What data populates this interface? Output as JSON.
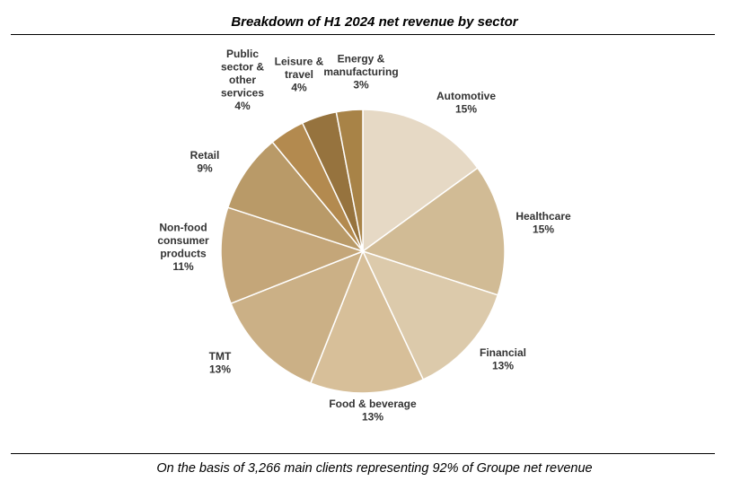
{
  "title": "Breakdown of H1 2024 net revenue by sector",
  "footnote": "On the basis of 3,266 main clients representing 92% of Groupe net revenue",
  "chart_data": {
    "type": "pie",
    "title": "Breakdown of H1 2024 net revenue by sector",
    "slices": [
      {
        "label": "Automotive",
        "label_lines": [
          "Automotive"
        ],
        "value": 15,
        "value_text": "15%",
        "color": "#e6d9c5"
      },
      {
        "label": "Healthcare",
        "label_lines": [
          "Healthcare"
        ],
        "value": 15,
        "value_text": "15%",
        "color": "#d1bb95"
      },
      {
        "label": "Financial",
        "label_lines": [
          "Financial"
        ],
        "value": 13,
        "value_text": "13%",
        "color": "#dccaab"
      },
      {
        "label": "Food & beverage",
        "label_lines": [
          "Food & beverage"
        ],
        "value": 13,
        "value_text": "13%",
        "color": "#d7bf99"
      },
      {
        "label": "TMT",
        "label_lines": [
          "TMT"
        ],
        "value": 13,
        "value_text": "13%",
        "color": "#cbb086"
      },
      {
        "label": "Non-food consumer products",
        "label_lines": [
          "Non-food",
          "consumer",
          "products"
        ],
        "value": 11,
        "value_text": "11%",
        "color": "#c4a679"
      },
      {
        "label": "Retail",
        "label_lines": [
          "Retail"
        ],
        "value": 9,
        "value_text": "9%",
        "color": "#b99a68"
      },
      {
        "label": "Public sector & other services",
        "label_lines": [
          "Public",
          "sector &",
          "other",
          "services"
        ],
        "value": 4,
        "value_text": "4%",
        "color": "#b38a4f"
      },
      {
        "label": "Leisure & travel",
        "label_lines": [
          "Leisure &",
          "travel"
        ],
        "value": 4,
        "value_text": "4%",
        "color": "#96733e"
      },
      {
        "label": "Energy & manufacturing",
        "label_lines": [
          "Energy &",
          "manufacturing"
        ],
        "value": 3,
        "value_text": "3%",
        "color": "#a88347"
      }
    ],
    "legend": "none"
  }
}
